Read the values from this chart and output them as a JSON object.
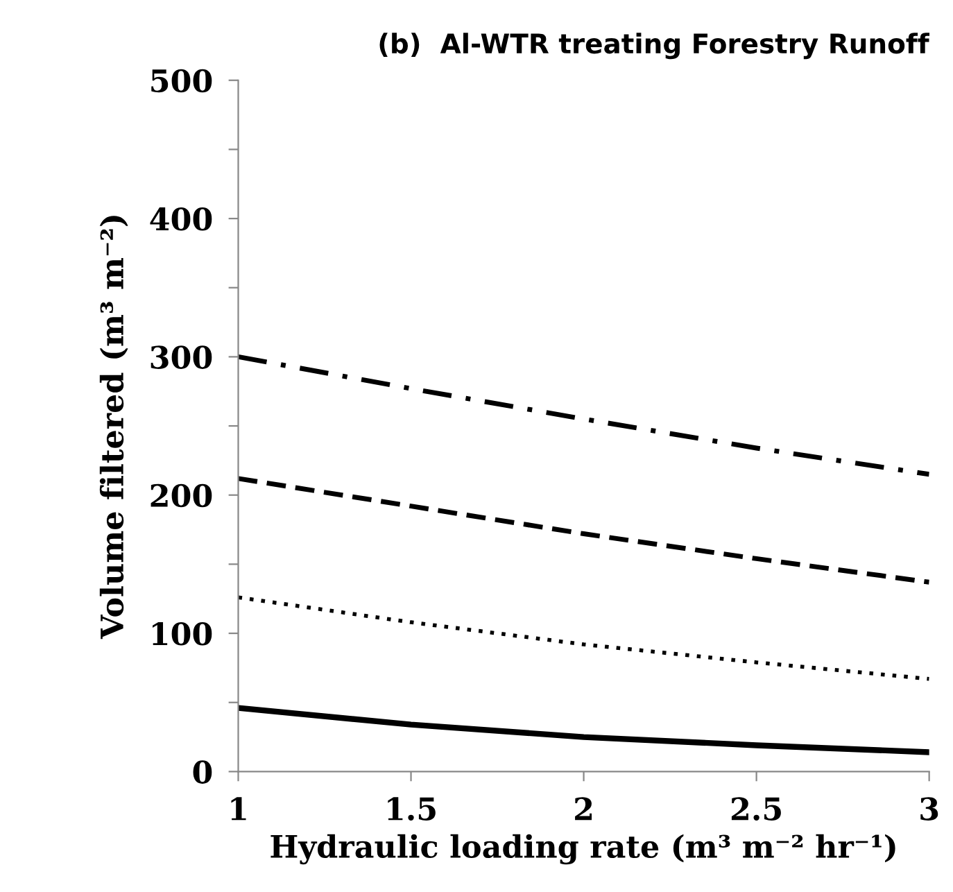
{
  "chart_data": {
    "type": "line",
    "title": "(b)  Al-WTR treating Forestry Runoff",
    "xlabel": "Hydraulic loading rate (m³ m⁻² hr⁻¹)",
    "ylabel": "Volume filtered (m³ m⁻²)",
    "x": [
      1,
      1.5,
      2,
      2.5,
      3
    ],
    "series": [
      {
        "color": "#000000",
        "line_style": "solid",
        "values": [
          46,
          34,
          25,
          19,
          14
        ]
      },
      {
        "color": "#000000",
        "line_style": "dotted",
        "values": [
          126,
          108,
          92,
          79,
          67
        ]
      },
      {
        "color": "#000000",
        "line_style": "dashed",
        "values": [
          212,
          192,
          172,
          154,
          137
        ]
      },
      {
        "color": "#000000",
        "line_style": "dashdot",
        "values": [
          300,
          277,
          255,
          234,
          215
        ]
      }
    ],
    "xlim": [
      1,
      3
    ],
    "xticks": [
      1,
      1.5,
      2,
      2.5,
      3
    ],
    "ylim": [
      0,
      500
    ],
    "yticks": [
      0,
      {
        "value": 50,
        "label": null
      },
      100,
      {
        "value": 150,
        "label": null
      },
      200,
      {
        "value": 250,
        "label": null
      },
      300,
      {
        "value": 350,
        "label": null
      },
      400,
      {
        "value": 450,
        "label": null
      },
      500
    ],
    "grid": false,
    "legend": false,
    "marker": "none"
  }
}
